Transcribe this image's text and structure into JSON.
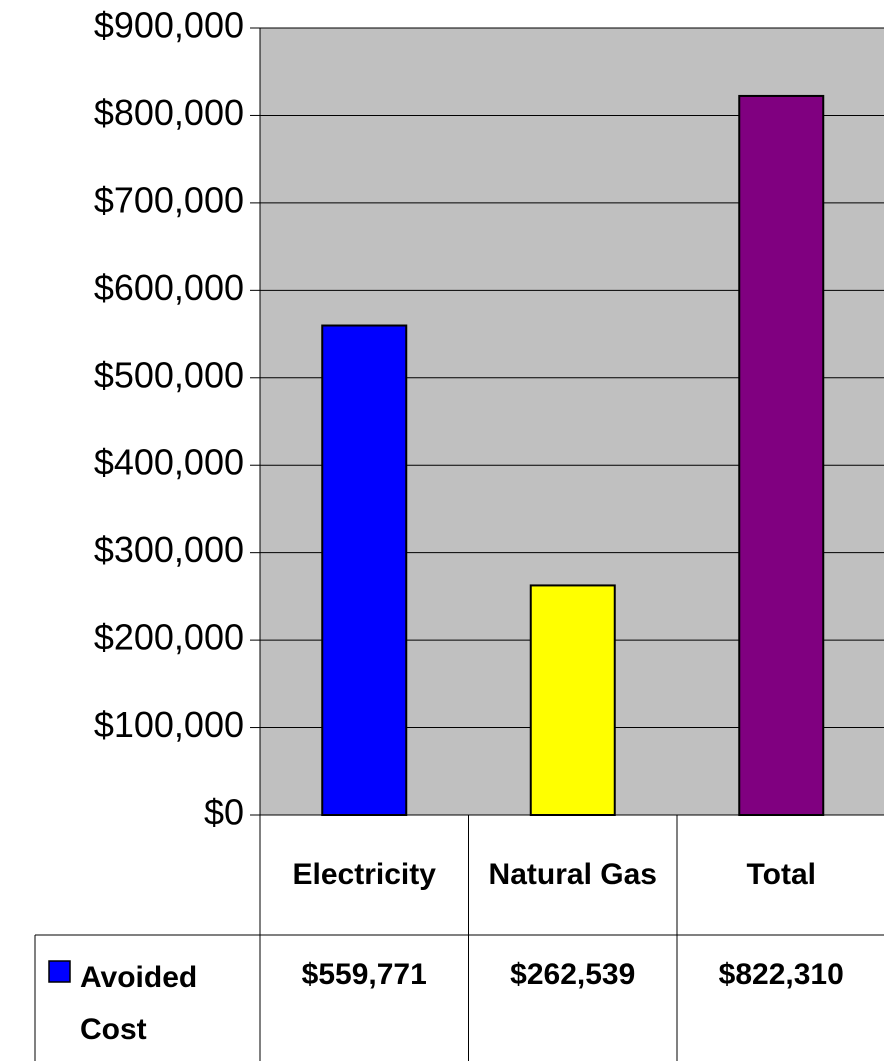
{
  "chart_data": {
    "type": "bar",
    "categories": [
      "Electricity",
      "Natural Gas",
      "Total"
    ],
    "series": [
      {
        "name": "Avoided Cost",
        "color": "#0000ff",
        "colors": [
          "#0000ff",
          "#ffff00",
          "#800080"
        ],
        "values": [
          559771,
          262539,
          822310
        ],
        "value_labels": [
          "$559,771",
          "$262,539",
          "$822,310"
        ]
      }
    ],
    "ylim": [
      0,
      900000
    ],
    "yticks": [
      {
        "value": 0,
        "label": "$0"
      },
      {
        "value": 100000,
        "label": "$100,000"
      },
      {
        "value": 200000,
        "label": "$200,000"
      },
      {
        "value": 300000,
        "label": "$300,000"
      },
      {
        "value": 400000,
        "label": "$400,000"
      },
      {
        "value": 500000,
        "label": "$500,000"
      },
      {
        "value": 600000,
        "label": "$600,000"
      },
      {
        "value": 700000,
        "label": "$700,000"
      },
      {
        "value": 800000,
        "label": "$800,000"
      },
      {
        "value": 900000,
        "label": "$900,000"
      }
    ],
    "grid": true,
    "plot_background": "#c0c0c0",
    "data_table": true
  }
}
